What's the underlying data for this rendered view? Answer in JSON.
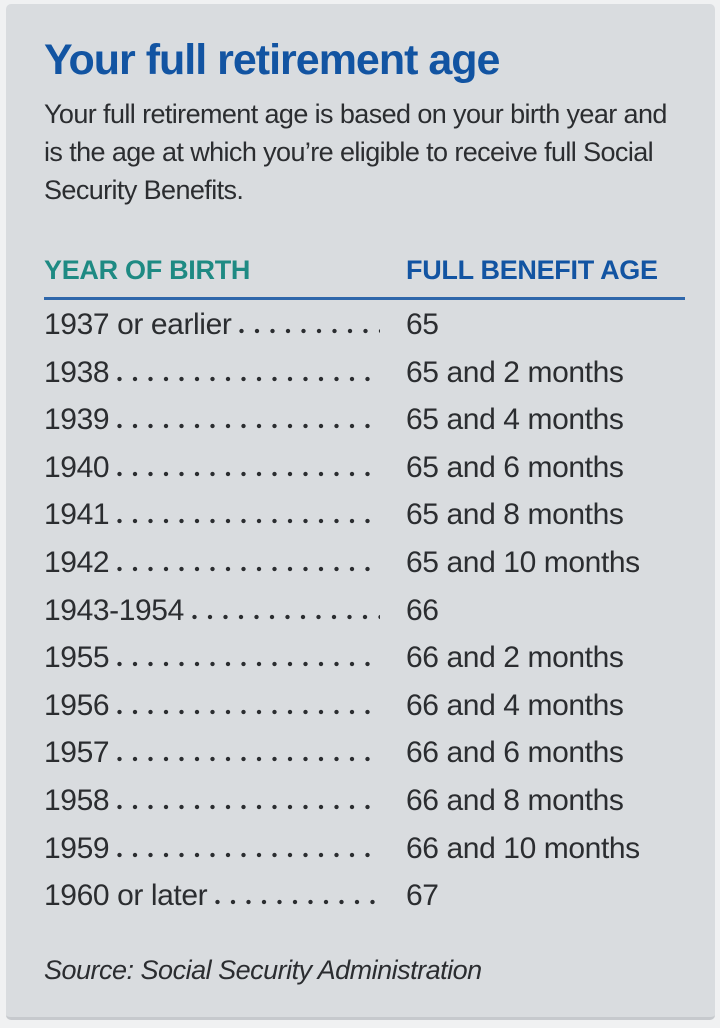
{
  "card": {
    "title": "Your full retirement age",
    "description": "Your full retirement age is based on your birth year and is the age at which you’re eligible to receive full Social Security Benefits.",
    "source": "Source: Social Security Administration"
  },
  "table": {
    "col1_header": "YEAR OF BIRTH",
    "col2_header": "FULL BENEFIT AGE",
    "rows": [
      {
        "year": "1937 or earlier",
        "age": "65"
      },
      {
        "year": "1938",
        "age": "65 and 2 months"
      },
      {
        "year": "1939",
        "age": "65 and 4 months"
      },
      {
        "year": "1940",
        "age": "65 and 6 months"
      },
      {
        "year": "1941",
        "age": "65 and 8 months"
      },
      {
        "year": "1942",
        "age": "65 and 10 months"
      },
      {
        "year": "1943-1954",
        "age": "66"
      },
      {
        "year": "1955",
        "age": "66 and 2 months"
      },
      {
        "year": "1956",
        "age": "66 and 4 months"
      },
      {
        "year": "1957",
        "age": "66 and 6 months"
      },
      {
        "year": "1958",
        "age": "66 and 8 months"
      },
      {
        "year": "1959",
        "age": "66 and 10 months"
      },
      {
        "year": "1960 or later",
        "age": "67"
      }
    ]
  },
  "colors": {
    "title_blue": "#1254a2",
    "header_teal": "#1e8a83",
    "header_blue": "#1254a2",
    "rule_blue": "#2f67ab",
    "text_dark": "#2b2d30",
    "panel_bg": "#d9dcdf",
    "page_bg": "#f0f1f2"
  }
}
